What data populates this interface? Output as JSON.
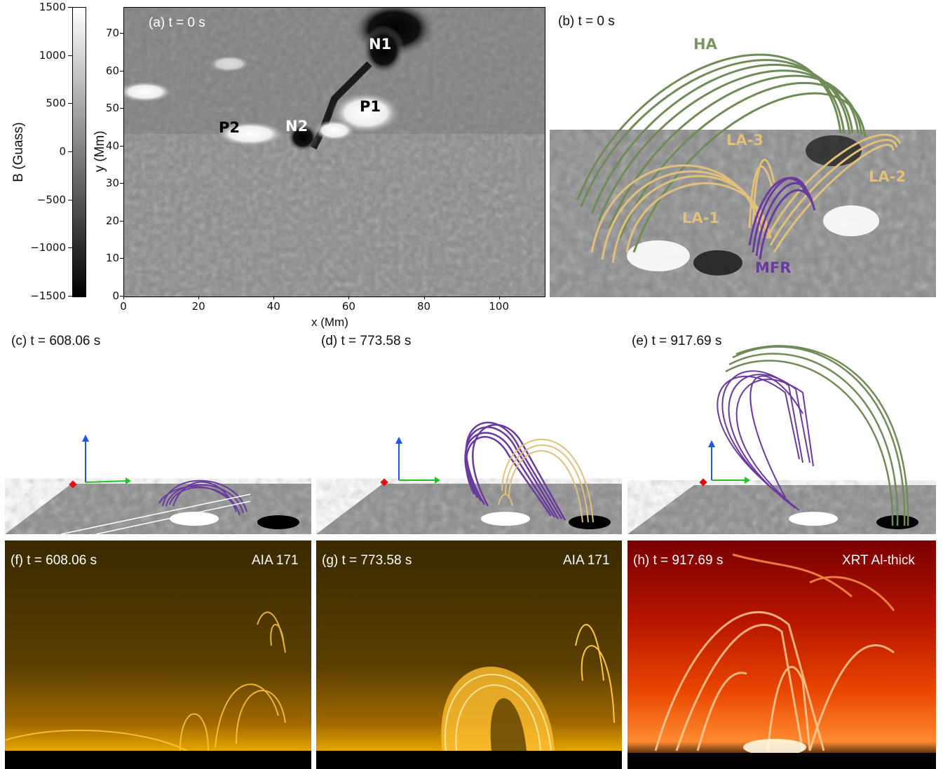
{
  "colorbar": {
    "label": "B (Guass)",
    "ticks": [
      "1500",
      "1000",
      "500",
      "0",
      "−500",
      "−1000",
      "−1500"
    ]
  },
  "panel_a": {
    "title": "(a) t = 0 s",
    "xlabel": "x (Mm)",
    "ylabel": "y (Mm)",
    "xticks": [
      "0",
      "20",
      "40",
      "60",
      "80",
      "100"
    ],
    "yticks": [
      "0",
      "10",
      "20",
      "30",
      "40",
      "50",
      "60",
      "70"
    ],
    "features": [
      "N1",
      "P1",
      "N2",
      "P2"
    ]
  },
  "panel_b": {
    "title": "(b) t = 0 s",
    "features": {
      "ha": "HA",
      "la1": "LA-1",
      "la2": "LA-2",
      "la3": "LA-3",
      "mfr": "MFR"
    }
  },
  "panel_c": {
    "title": "(c) t = 608.06 s"
  },
  "panel_d": {
    "title": "(d) t = 773.58 s"
  },
  "panel_e": {
    "title": "(e) t = 917.69 s"
  },
  "panel_f": {
    "title": "(f) t = 608.06 s",
    "instrument": "AIA 171"
  },
  "panel_g": {
    "title": "(g) t = 773.58 s",
    "instrument": "AIA 171"
  },
  "panel_h": {
    "title": "(h) t = 917.69 s",
    "instrument": "XRT Al-thick"
  },
  "colors": {
    "ha": "#7a9660",
    "la": "#e0c07a",
    "mfr": "#6a3aa0",
    "aia": "#f2a300",
    "xrt": "#ff5a00"
  }
}
